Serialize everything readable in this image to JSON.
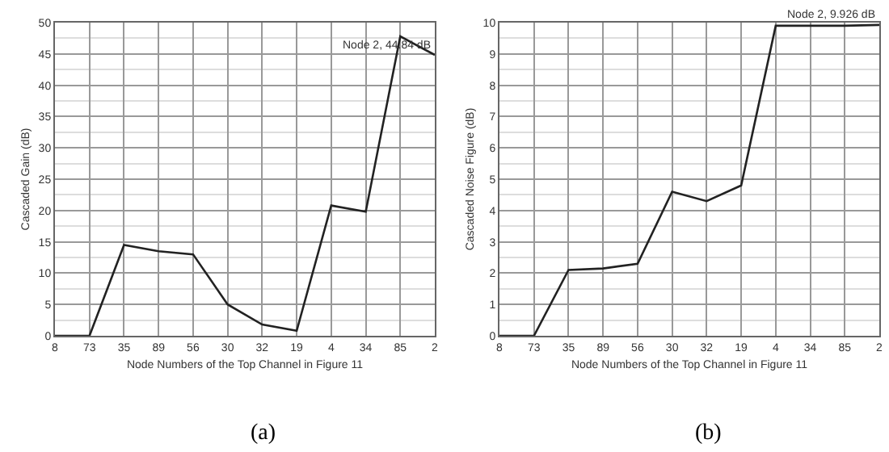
{
  "chart_data": [
    {
      "type": "line",
      "xlabel": "Node Numbers of the Top Channel in Figure 11",
      "ylabel": "Cascaded Gain (dB)",
      "categories": [
        "8",
        "73",
        "35",
        "89",
        "56",
        "30",
        "32",
        "19",
        "4",
        "34",
        "85",
        "2"
      ],
      "series": [
        {
          "color": "#222222",
          "values": [
            0,
            0,
            14.5,
            13.5,
            13,
            5,
            1.8,
            0.8,
            20.8,
            19.8,
            47.8,
            44.84
          ]
        }
      ],
      "ylim": [
        0,
        50
      ],
      "yticks": [
        0,
        5,
        10,
        15,
        20,
        25,
        30,
        35,
        40,
        45,
        50
      ],
      "grid": true,
      "marker": "none",
      "line_style": "solid",
      "annotations": [
        {
          "text": "Node 2, 44.84 dB",
          "x": "2",
          "y": 44.84
        },
        "(a)"
      ]
    },
    {
      "type": "line",
      "xlabel": "Node Numbers of the Top Channel in Figure 11",
      "ylabel": "Cascaded Noise Figure (dB)",
      "categories": [
        "8",
        "73",
        "35",
        "89",
        "56",
        "30",
        "32",
        "19",
        "4",
        "34",
        "85",
        "2"
      ],
      "series": [
        {
          "color": "#222222",
          "values": [
            0,
            0,
            2.1,
            2.15,
            2.3,
            4.6,
            4.3,
            4.8,
            9.9,
            9.9,
            9.9,
            9.926
          ]
        }
      ],
      "ylim": [
        0,
        10
      ],
      "yticks": [
        0,
        1,
        2,
        3,
        4,
        5,
        6,
        7,
        8,
        9,
        10
      ],
      "grid": true,
      "marker": "none",
      "line_style": "solid",
      "annotations": [
        {
          "text": "Node 2, 9.926 dB",
          "x": "2",
          "y": 9.926
        },
        "(b)"
      ]
    }
  ]
}
